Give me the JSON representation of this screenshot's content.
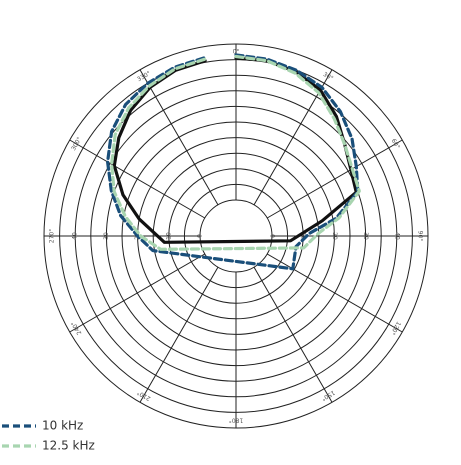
{
  "chart_data": {
    "type": "polar",
    "title": "",
    "radial_ticks": [
      "0",
      "10",
      "20",
      "30",
      "40"
    ],
    "radial_max": 50,
    "angle_ticks": [
      {
        "angle": 0,
        "label": "0°"
      },
      {
        "angle": 30,
        "label": "30°"
      },
      {
        "angle": 60,
        "label": "60°"
      },
      {
        "angle": 90,
        "label": "90°"
      },
      {
        "angle": 120,
        "label": "120°"
      },
      {
        "angle": 150,
        "label": "150°"
      },
      {
        "angle": 180,
        "label": "180°"
      },
      {
        "angle": 210,
        "label": "210°"
      },
      {
        "angle": 240,
        "label": "240°"
      },
      {
        "angle": 270,
        "label": "270°"
      },
      {
        "angle": 300,
        "label": "300°"
      },
      {
        "angle": 330,
        "label": "330°"
      }
    ],
    "series": [
      {
        "name": "",
        "color": "#111111",
        "dash": "solid",
        "points": [
          {
            "angle": 0,
            "r": 45.5
          },
          {
            "angle": 10,
            "r": 45.5
          },
          {
            "angle": 20,
            "r": 44.5
          },
          {
            "angle": 30,
            "r": 42.5
          },
          {
            "angle": 40,
            "r": 38.5
          },
          {
            "angle": 50,
            "r": 34.0
          },
          {
            "angle": 60,
            "r": 31.0
          },
          {
            "angle": 70,
            "r": 29.5
          },
          {
            "angle": 80,
            "r": 16.5
          },
          {
            "angle": 95,
            "r": 6.0
          },
          {
            "angle": 265,
            "r": 11.5
          },
          {
            "angle": 280,
            "r": 20.0
          },
          {
            "angle": 290,
            "r": 27.0
          },
          {
            "angle": 300,
            "r": 33.5
          },
          {
            "angle": 310,
            "r": 37.5
          },
          {
            "angle": 320,
            "r": 41.0
          },
          {
            "angle": 330,
            "r": 43.5
          },
          {
            "angle": 340,
            "r": 45.0
          },
          {
            "angle": 350,
            "r": 45.5
          }
        ]
      },
      {
        "name": "10 kHz",
        "color": "#1a4f7a",
        "dash": "dashed",
        "points": [
          {
            "angle": 0,
            "r": 46.5
          },
          {
            "angle": 10,
            "r": 46.0
          },
          {
            "angle": 20,
            "r": 45.0
          },
          {
            "angle": 30,
            "r": 43.5
          },
          {
            "angle": 40,
            "r": 40.5
          },
          {
            "angle": 50,
            "r": 37.0
          },
          {
            "angle": 60,
            "r": 33.0
          },
          {
            "angle": 70,
            "r": 30.0
          },
          {
            "angle": 80,
            "r": 21.0
          },
          {
            "angle": 88,
            "r": 12.0
          },
          {
            "angle": 100,
            "r": 8.0
          },
          {
            "angle": 120,
            "r": 9.5
          },
          {
            "angle": 260,
            "r": 15.5
          },
          {
            "angle": 270,
            "r": 20.0
          },
          {
            "angle": 280,
            "r": 26.0
          },
          {
            "angle": 290,
            "r": 31.0
          },
          {
            "angle": 300,
            "r": 36.0
          },
          {
            "angle": 310,
            "r": 40.5
          },
          {
            "angle": 320,
            "r": 43.5
          },
          {
            "angle": 330,
            "r": 45.0
          },
          {
            "angle": 340,
            "r": 46.0
          },
          {
            "angle": 350,
            "r": 46.5
          }
        ]
      },
      {
        "name": "12.5 kHz",
        "color": "#a8d5b0",
        "dash": "dashed",
        "points": [
          {
            "angle": 0,
            "r": 46.0
          },
          {
            "angle": 10,
            "r": 45.5
          },
          {
            "angle": 20,
            "r": 44.0
          },
          {
            "angle": 30,
            "r": 41.5
          },
          {
            "angle": 40,
            "r": 37.5
          },
          {
            "angle": 50,
            "r": 34.0
          },
          {
            "angle": 60,
            "r": 31.5
          },
          {
            "angle": 70,
            "r": 30.5
          },
          {
            "angle": 80,
            "r": 22.0
          },
          {
            "angle": 88,
            "r": 15.0
          },
          {
            "angle": 100,
            "r": 10.5
          },
          {
            "angle": 260,
            "r": 13.0
          },
          {
            "angle": 270,
            "r": 19.0
          },
          {
            "angle": 280,
            "r": 24.5
          },
          {
            "angle": 290,
            "r": 30.0
          },
          {
            "angle": 300,
            "r": 34.5
          },
          {
            "angle": 310,
            "r": 39.0
          },
          {
            "angle": 320,
            "r": 42.0
          },
          {
            "angle": 330,
            "r": 44.0
          },
          {
            "angle": 340,
            "r": 45.5
          },
          {
            "angle": 350,
            "r": 46.0
          }
        ]
      }
    ],
    "legend": {
      "position": "bottom-left",
      "entries": [
        {
          "label": "10 kHz",
          "color": "#1a4f7a"
        },
        {
          "label": "12.5 kHz",
          "color": "#a8d5b0"
        }
      ]
    }
  }
}
